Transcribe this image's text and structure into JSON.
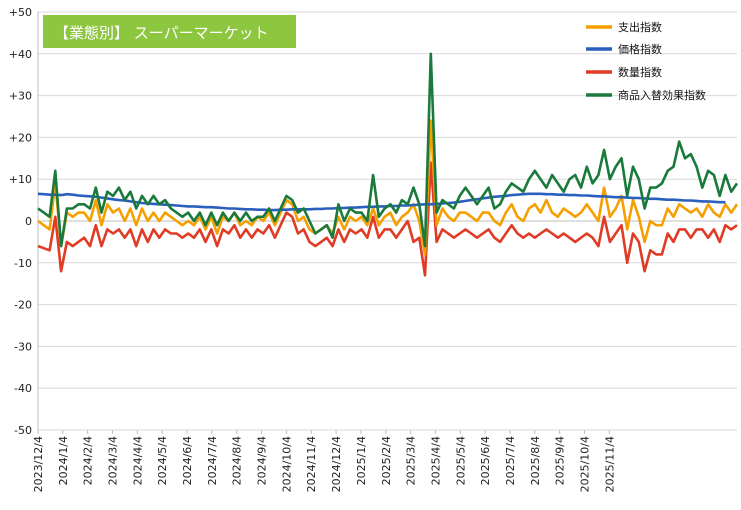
{
  "chart_data": {
    "type": "line",
    "title": "【業態別】 スーパーマーケット",
    "title_box_color": "#8dc63f",
    "xlabel": "",
    "ylabel": "",
    "ylim": [
      -50,
      50
    ],
    "yticks": [
      50,
      40,
      30,
      20,
      10,
      0,
      -10,
      -20,
      -30,
      -40,
      -50
    ],
    "ytick_labels": [
      "+50",
      "+40",
      "+30",
      "+20",
      "+10",
      "0",
      "-10",
      "-20",
      "-30",
      "-40",
      "-50"
    ],
    "x_tick_labels": [
      "2023/12/4",
      "2024/1/4",
      "2024/2/4",
      "2024/3/4",
      "2024/4/4",
      "2024/5/4",
      "2024/6/4",
      "2024/7/4",
      "2024/8/4",
      "2024/9/4",
      "2024/10/4",
      "2024/11/4",
      "2024/12/4",
      "2025/1/4",
      "2025/2/4",
      "2025/3/4",
      "2025/4/4",
      "2025/5/4",
      "2025/6/4",
      "2025/7/4",
      "2025/8/4",
      "2025/9/4",
      "2025/10/4",
      "2025/11/4"
    ],
    "points_per_month": 4.3,
    "grid": true,
    "legend_position": "top-right",
    "series": [
      {
        "name": "支出指数",
        "color": "#f5a000",
        "values": [
          0,
          -1,
          -2,
          9,
          -6,
          2,
          1,
          2,
          2,
          0,
          5,
          -1,
          4,
          2,
          3,
          0,
          3,
          -1,
          3,
          0,
          2,
          0,
          2,
          1,
          0,
          -1,
          0,
          -1,
          1,
          -2,
          1,
          -3,
          1,
          0,
          2,
          -1,
          0,
          -1,
          1,
          0,
          2,
          -1,
          2,
          5,
          4,
          0,
          1,
          -2,
          -3,
          -2,
          -1,
          -3,
          1,
          -2,
          1,
          0,
          1,
          -1,
          3,
          -1,
          1,
          2,
          -1,
          1,
          2,
          4,
          0,
          -8,
          24,
          -1,
          3,
          1,
          0,
          2,
          2,
          1,
          0,
          2,
          2,
          0,
          -1,
          2,
          4,
          1,
          0,
          3,
          4,
          2,
          5,
          2,
          1,
          3,
          2,
          1,
          2,
          4,
          2,
          0,
          8,
          1,
          3,
          6,
          -2,
          5,
          1,
          -5,
          0,
          -1,
          -1,
          3,
          1,
          4,
          3,
          2,
          3,
          1,
          4,
          2,
          1,
          4,
          2,
          4
        ],
        "label_bind": "legend.spend"
      },
      {
        "name": "価格指数",
        "color": "#2b5fbd",
        "values": [
          6.5,
          6.4,
          6.3,
          6.3,
          6.2,
          6.4,
          6.3,
          6.1,
          6.0,
          5.9,
          5.8,
          5.6,
          5.4,
          5.2,
          5.0,
          4.9,
          4.7,
          4.5,
          4.3,
          4.2,
          4.1,
          4.0,
          3.9,
          3.8,
          3.7,
          3.6,
          3.5,
          3.5,
          3.4,
          3.3,
          3.3,
          3.2,
          3.1,
          3.0,
          3.0,
          2.9,
          2.8,
          2.8,
          2.7,
          2.7,
          2.6,
          2.6,
          2.7,
          2.7,
          2.8,
          2.8,
          2.8,
          2.8,
          2.9,
          2.9,
          3.0,
          3.0,
          3.1,
          3.1,
          3.2,
          3.2,
          3.3,
          3.4,
          3.4,
          3.5,
          3.5,
          3.6,
          3.6,
          3.7,
          3.7,
          3.8,
          3.9,
          4.0,
          4.0,
          4.1,
          4.2,
          4.3,
          4.4,
          4.6,
          4.8,
          5.0,
          5.2,
          5.4,
          5.6,
          5.8,
          5.9,
          6.0,
          6.2,
          6.3,
          6.4,
          6.5,
          6.5,
          6.5,
          6.4,
          6.4,
          6.3,
          6.3,
          6.2,
          6.2,
          6.1,
          6.1,
          6.0,
          5.9,
          5.9,
          5.8,
          5.7,
          5.7,
          5.6,
          5.5,
          5.5,
          5.4,
          5.3,
          5.3,
          5.2,
          5.1,
          5.1,
          5.0,
          4.9,
          4.9,
          4.8,
          4.7,
          4.7,
          4.6,
          4.5,
          4.5
        ],
        "label_bind": "legend.price"
      },
      {
        "name": "数量指数",
        "color": "#e03c25",
        "values": [
          -6,
          -6.5,
          -7,
          1,
          -12,
          -5,
          -6,
          -5,
          -4,
          -6,
          -1,
          -6,
          -2,
          -3,
          -2,
          -4,
          -2,
          -6,
          -2,
          -5,
          -2,
          -4,
          -2,
          -3,
          -3,
          -4,
          -3,
          -4,
          -2,
          -5,
          -2,
          -6,
          -2,
          -3,
          -1,
          -4,
          -2,
          -4,
          -2,
          -3,
          -1,
          -4,
          -1,
          2,
          1,
          -3,
          -2,
          -5,
          -6,
          -5,
          -4,
          -6,
          -2,
          -5,
          -2,
          -3,
          -2,
          -4,
          1,
          -4,
          -2,
          -2,
          -4,
          -2,
          0,
          -5,
          -4,
          -13,
          14,
          -5,
          -2,
          -3,
          -4,
          -3,
          -2,
          -3,
          -4,
          -3,
          -2,
          -4,
          -5,
          -3,
          -1,
          -3,
          -4,
          -3,
          -4,
          -3,
          -2,
          -3,
          -4,
          -3,
          -4,
          -5,
          -4,
          -3,
          -4,
          -6,
          1,
          -5,
          -3,
          -1,
          -10,
          -3,
          -5,
          -12,
          -7,
          -8,
          -8,
          -3,
          -5,
          -2,
          -2,
          -4,
          -2,
          -2,
          -4,
          -2,
          -5,
          -1,
          -2,
          -1
        ],
        "label_bind": "legend.quantity"
      },
      {
        "name": "商品入替効果指数",
        "color": "#1a7a3c",
        "values": [
          3,
          2,
          1,
          12,
          -6,
          3,
          3,
          4,
          4,
          3,
          8,
          2,
          7,
          6,
          8,
          5,
          7,
          3,
          6,
          4,
          6,
          4,
          5,
          3,
          2,
          1,
          2,
          0,
          2,
          -1,
          2,
          -1,
          2,
          0,
          2,
          0,
          2,
          0,
          1,
          1,
          3,
          0,
          3,
          6,
          5,
          2,
          3,
          0,
          -3,
          -2,
          -1,
          -4,
          4,
          0,
          3,
          2,
          2,
          0,
          11,
          1,
          3,
          4,
          2,
          5,
          4,
          8,
          4,
          -6,
          40,
          2,
          5,
          4,
          3,
          6,
          8,
          6,
          4,
          6,
          8,
          3,
          4,
          7,
          9,
          8,
          7,
          10,
          12,
          10,
          8,
          11,
          9,
          7,
          10,
          11,
          8,
          13,
          9,
          11,
          17,
          10,
          13,
          15,
          6,
          13,
          10,
          3,
          8,
          8,
          9,
          12,
          13,
          19,
          15,
          16,
          13,
          8,
          12,
          11,
          6,
          11,
          7,
          9
        ]
      }
    ]
  },
  "legend": {
    "spend": "支出指数",
    "price": "価格指数",
    "quantity": "数量指数",
    "switch": "商品入替効果指数"
  }
}
